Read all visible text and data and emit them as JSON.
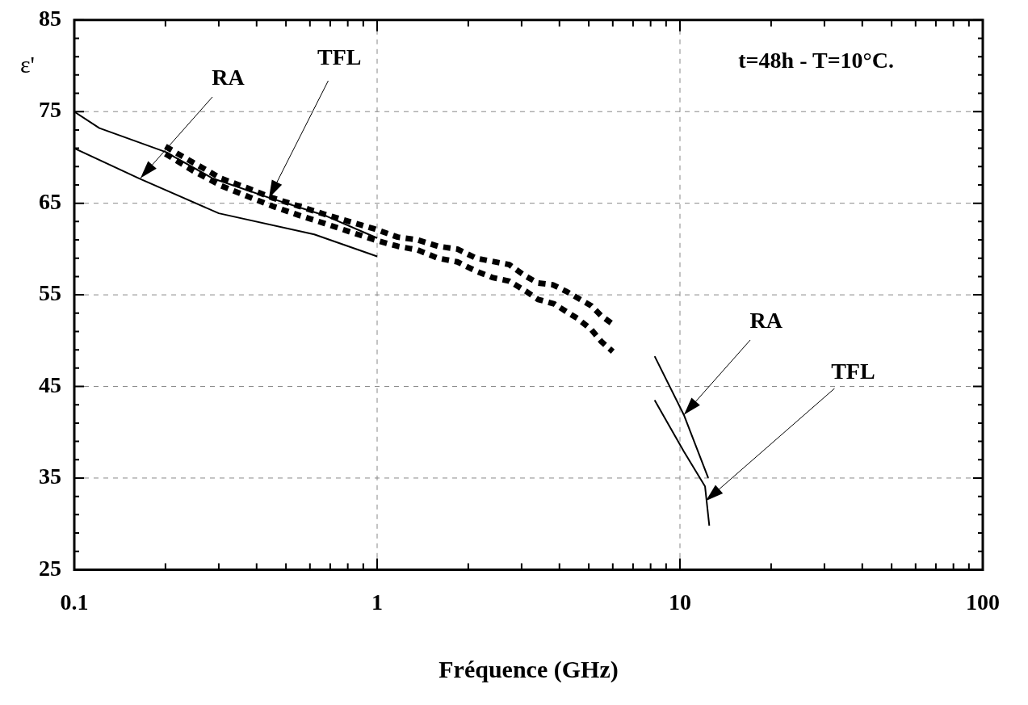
{
  "chart_data": {
    "type": "line",
    "xlabel": "Fréquence (GHz)",
    "ylabel": "ε'",
    "log": "x",
    "grid": true,
    "legend": false,
    "marker": "none",
    "xlim": [
      0.1,
      100
    ],
    "ylim": [
      25,
      85
    ],
    "xticks": [
      0.1,
      {
        "value": 0.2,
        "label": null
      },
      {
        "value": 0.3,
        "label": null
      },
      {
        "value": 0.4,
        "label": null
      },
      {
        "value": 0.5,
        "label": null
      },
      {
        "value": 0.6,
        "label": null
      },
      {
        "value": 0.7,
        "label": null
      },
      {
        "value": 0.8,
        "label": null
      },
      {
        "value": 0.9,
        "label": null
      },
      1,
      {
        "value": 2,
        "label": null
      },
      {
        "value": 3,
        "label": null
      },
      {
        "value": 4,
        "label": null
      },
      {
        "value": 5,
        "label": null
      },
      {
        "value": 6,
        "label": null
      },
      {
        "value": 7,
        "label": null
      },
      {
        "value": 8,
        "label": null
      },
      {
        "value": 9,
        "label": null
      },
      10,
      {
        "value": 20,
        "label": null
      },
      {
        "value": 30,
        "label": null
      },
      {
        "value": 40,
        "label": null
      },
      {
        "value": 50,
        "label": null
      },
      {
        "value": 60,
        "label": null
      },
      {
        "value": 70,
        "label": null
      },
      {
        "value": 80,
        "label": null
      },
      {
        "value": 90,
        "label": null
      },
      100
    ],
    "yticks": [
      25,
      {
        "value": 27,
        "label": null
      },
      {
        "value": 29,
        "label": null
      },
      {
        "value": 31,
        "label": null
      },
      {
        "value": 33,
        "label": null
      },
      35,
      {
        "value": 37,
        "label": null
      },
      {
        "value": 39,
        "label": null
      },
      {
        "value": 41,
        "label": null
      },
      {
        "value": 43,
        "label": null
      },
      45,
      {
        "value": 47,
        "label": null
      },
      {
        "value": 49,
        "label": null
      },
      {
        "value": 51,
        "label": null
      },
      {
        "value": 53,
        "label": null
      },
      55,
      {
        "value": 57,
        "label": null
      },
      {
        "value": 59,
        "label": null
      },
      {
        "value": 61,
        "label": null
      },
      {
        "value": 63,
        "label": null
      },
      65,
      {
        "value": 67,
        "label": null
      },
      {
        "value": 69,
        "label": null
      },
      {
        "value": 71,
        "label": null
      },
      {
        "value": 73,
        "label": null
      },
      75,
      {
        "value": 77,
        "label": null
      },
      {
        "value": 79,
        "label": null
      },
      {
        "value": 81,
        "label": null
      },
      {
        "value": 83,
        "label": null
      },
      85
    ],
    "series": [
      {
        "type": "line",
        "color": "#000000",
        "line_style": "solid",
        "x": [
          0.1,
          0.121,
          0.2,
          0.287,
          0.44,
          0.68,
          1.0
        ],
        "values": [
          75.0,
          73.2,
          70.6,
          67.7,
          65.6,
          63.6,
          61.2
        ]
      },
      {
        "type": "line",
        "color": "#000000",
        "line_style": "solid",
        "x": [
          0.1,
          0.164,
          0.3,
          0.62,
          1.0
        ],
        "values": [
          71.0,
          67.7,
          63.9,
          61.6,
          59.2
        ]
      },
      {
        "type": "line",
        "color": "#000000",
        "line_style": "dashed",
        "x": [
          0.2,
          0.245,
          0.306,
          0.37,
          0.45,
          0.55,
          0.67,
          0.81,
          0.98,
          1.17,
          1.36,
          1.59,
          1.84,
          2.12,
          2.73,
          3.07,
          3.39,
          3.8,
          4.2,
          5.1,
          5.5,
          6.0
        ],
        "values": [
          71.2,
          69.5,
          67.7,
          66.7,
          65.6,
          64.7,
          63.8,
          63.0,
          62.2,
          61.3,
          61.0,
          60.3,
          60.0,
          59.0,
          58.3,
          57.1,
          56.3,
          56.1,
          55.4,
          53.8,
          52.7,
          51.8
        ]
      },
      {
        "type": "line",
        "color": "#000000",
        "line_style": "dashed",
        "x": [
          0.2,
          0.245,
          0.306,
          0.37,
          0.45,
          0.55,
          0.67,
          0.81,
          0.98,
          1.17,
          1.36,
          1.59,
          1.84,
          2.12,
          2.4,
          2.73,
          3.1,
          3.4,
          3.85,
          4.2,
          4.6,
          5.1,
          5.5,
          6.0
        ],
        "values": [
          70.4,
          68.6,
          66.9,
          65.8,
          64.7,
          63.7,
          62.8,
          61.9,
          61.0,
          60.3,
          59.9,
          59.0,
          58.6,
          57.6,
          56.9,
          56.5,
          55.4,
          54.5,
          54.0,
          53.2,
          52.4,
          51.2,
          49.9,
          48.8
        ]
      },
      {
        "type": "line",
        "color": "#000000",
        "line_style": "solid",
        "x": [
          8.25,
          10.3,
          12.4
        ],
        "values": [
          48.3,
          41.9,
          35.0
        ]
      },
      {
        "type": "line",
        "color": "#000000",
        "line_style": "solid",
        "x": [
          8.25,
          10.3,
          12.1,
          12.5
        ],
        "values": [
          43.5,
          37.9,
          34.1,
          29.8
        ]
      }
    ],
    "annotations": [
      {
        "text": "RA",
        "x": 0.165,
        "y": 67.7
      },
      {
        "text": "TFL",
        "x": 0.44,
        "y": 65.6
      },
      {
        "text": "RA",
        "x": 10.3,
        "y": 41.9
      },
      {
        "text": "TFL",
        "x": 12.2,
        "y": 32.5
      },
      "t=48h - T=10°C."
    ]
  }
}
